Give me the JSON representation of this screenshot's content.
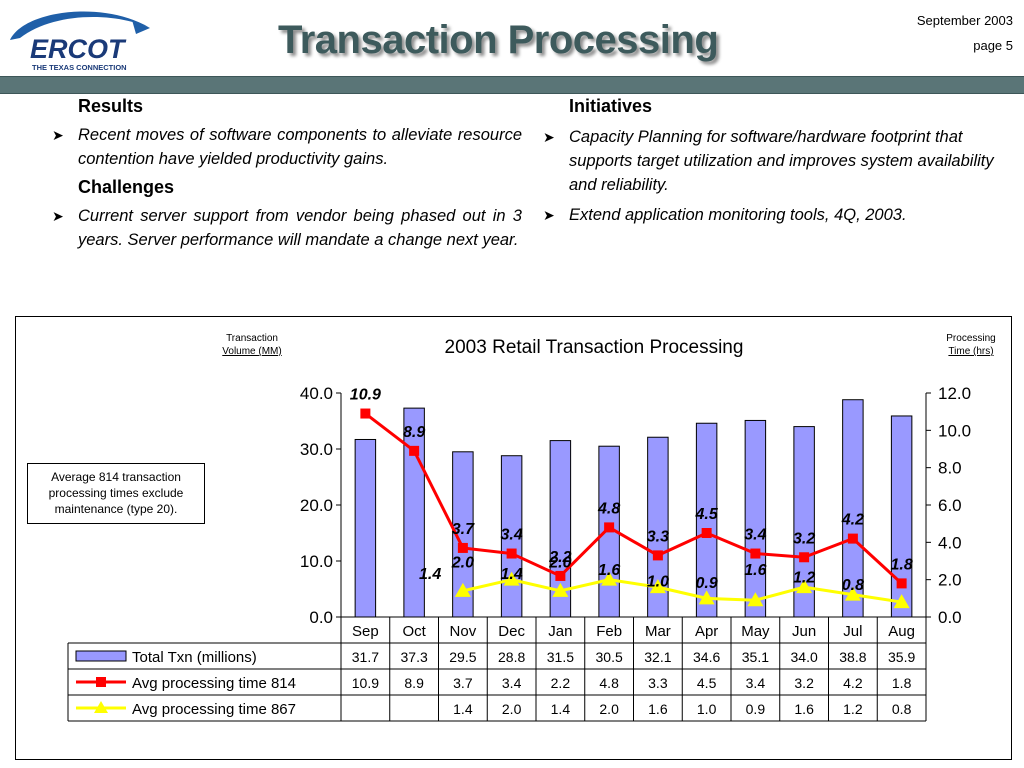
{
  "header": {
    "logo_text": "ERCOT",
    "logo_tagline": "THE TEXAS CONNECTION",
    "title": "Transaction Processing",
    "date": "September 2003",
    "page": "page 5"
  },
  "left": {
    "results_heading": "Results",
    "results_text": "Recent moves of software components to alleviate resource contention have yielded productivity gains.",
    "challenges_heading": "Challenges",
    "challenges_text": "Current server support from vendor being phased out in 3 years.  Server performance will mandate a change next year."
  },
  "right": {
    "heading": "Initiatives",
    "bullets": [
      "Capacity Planning for software/hardware footprint that supports target utilization and improves system availability and reliability.",
      "Extend  application monitoring tools, 4Q, 2003."
    ]
  },
  "note": "Average 814 transaction processing times exclude maintenance (type 20).",
  "colors": {
    "bar": "#9999ff",
    "line814": "#ff0000",
    "line867": "#ffff00",
    "header_rule": "#5a7577",
    "title": "#3d5a5c"
  },
  "chart_data": {
    "type": "bar",
    "title": "2003 Retail Transaction Processing",
    "ylabel_left": [
      "Transaction",
      "Volume (MM)"
    ],
    "ylabel_right": [
      "Processing",
      "Time (hrs)"
    ],
    "ylim_left": [
      0,
      40
    ],
    "ylim_right": [
      0,
      12
    ],
    "yticks_left": [
      "0.0",
      "10.0",
      "20.0",
      "30.0",
      "40.0"
    ],
    "yticks_right": [
      "0.0",
      "2.0",
      "4.0",
      "6.0",
      "8.0",
      "10.0",
      "12.0"
    ],
    "categories": [
      "Sep",
      "Oct",
      "Nov",
      "Dec",
      "Jan",
      "Feb",
      "Mar",
      "Apr",
      "May",
      "Jun",
      "Jul",
      "Aug"
    ],
    "series": [
      {
        "name": "Total Txn (millions)",
        "type": "bar",
        "axis": "left",
        "values": [
          31.7,
          37.3,
          29.5,
          28.8,
          31.5,
          30.5,
          32.1,
          34.6,
          35.1,
          34.0,
          38.8,
          35.9
        ],
        "table_values": [
          "31.7",
          "37.3",
          "29.5",
          "28.8",
          "31.5",
          "30.5",
          "32.1",
          "34.6",
          "35.1",
          "34.0",
          "38.8",
          "35.9"
        ]
      },
      {
        "name": "Avg processing time 814",
        "type": "line",
        "axis": "right",
        "values": [
          10.9,
          8.9,
          3.7,
          3.4,
          2.2,
          4.8,
          3.3,
          4.5,
          3.4,
          3.2,
          4.2,
          1.8
        ],
        "labels": [
          "10.9",
          "8.9",
          "3.7",
          "3.4",
          "2.2",
          "4.8",
          "3.3",
          "4.5",
          "3.4",
          "3.2",
          "4.2",
          "1.8"
        ]
      },
      {
        "name": "Avg processing time 867",
        "type": "line",
        "axis": "right",
        "values": [
          null,
          null,
          1.4,
          2.0,
          1.4,
          2.0,
          1.6,
          1.0,
          0.9,
          1.6,
          1.2,
          0.8
        ],
        "labels": [
          "",
          "",
          "1.4",
          "2.0",
          "1.4",
          "2.0",
          "1.6",
          "1.0",
          "0.9",
          "1.6",
          "1.2",
          "0.8"
        ]
      }
    ],
    "line867_chart_labels": [
      "",
      "",
      "2.0",
      "1.4",
      "2.0",
      "1.6",
      "1.0",
      "0.9",
      "1.6",
      "1.2",
      "0.8",
      ""
    ],
    "line867_prefix_label": "1.4"
  }
}
